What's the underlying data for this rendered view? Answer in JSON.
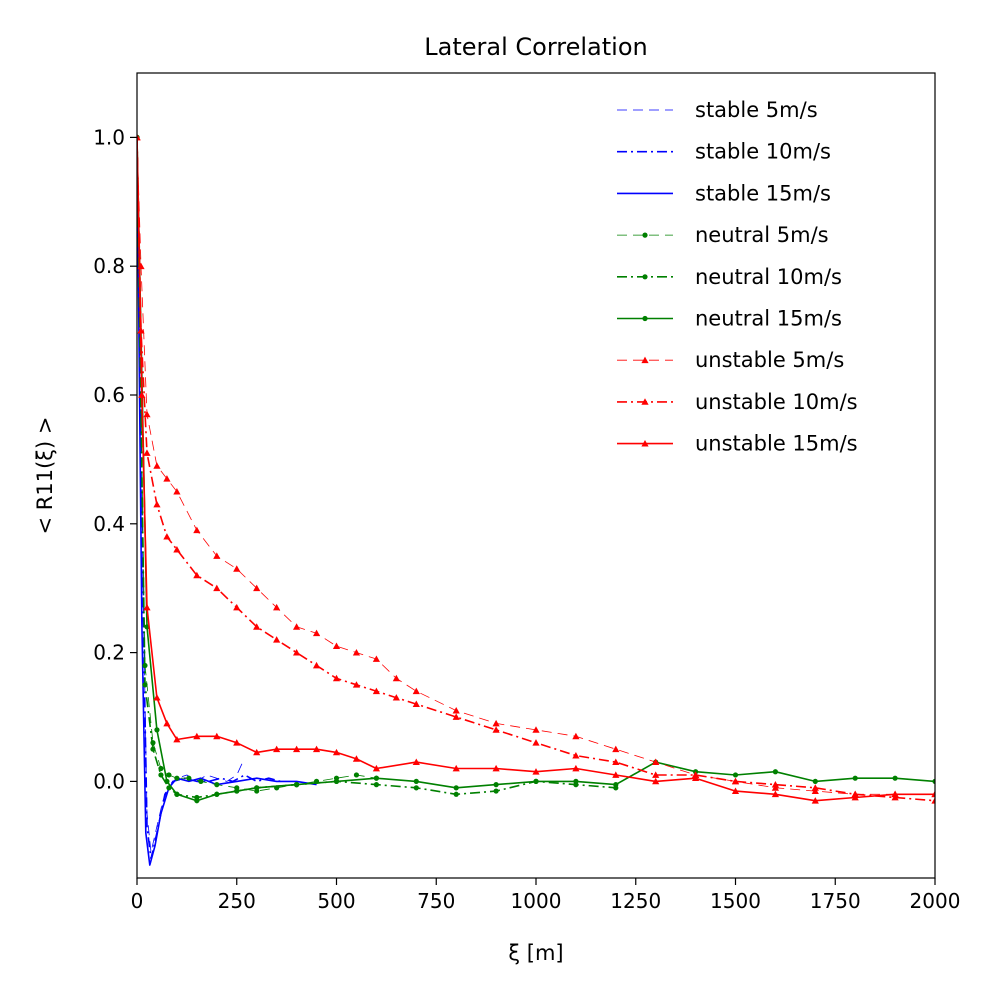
{
  "chart_data": {
    "type": "line",
    "title": "Lateral Correlation",
    "xlabel": "ξ [m]",
    "ylabel": "< R11(ξ) >",
    "xlim": [
      0,
      2000
    ],
    "ylim": [
      -0.15,
      1.1
    ],
    "xticks": [
      0,
      250,
      500,
      750,
      1000,
      1250,
      1500,
      1750,
      2000
    ],
    "xtick_labels": [
      "0",
      "250",
      "500",
      "750",
      "1000",
      "1250",
      "1500",
      "1750",
      "2000"
    ],
    "yticks": [
      0.0,
      0.2,
      0.4,
      0.6,
      0.8,
      1.0
    ],
    "ytick_labels": [
      "0.0",
      "0.2",
      "0.4",
      "0.6",
      "0.8",
      "1.0"
    ],
    "legend_position": "top-right",
    "grid": false,
    "series": [
      {
        "name": "stable 5m/s",
        "color": "#0000ff",
        "dash": "dashed",
        "width": 0.8,
        "marker": "none",
        "x": [
          0,
          15,
          25,
          35,
          50,
          65,
          80,
          100,
          125,
          150,
          175,
          200,
          225,
          250,
          265
        ],
        "y": [
          1.0,
          0.3,
          -0.05,
          -0.11,
          -0.07,
          -0.03,
          -0.01,
          0.005,
          0.01,
          0.0,
          0.01,
          0.005,
          0.0,
          0.01,
          0.03
        ]
      },
      {
        "name": "stable 10m/s",
        "color": "#0000ff",
        "dash": "dashdot",
        "width": 1.6,
        "marker": "none",
        "x": [
          0,
          15,
          25,
          35,
          50,
          70,
          90,
          120,
          150,
          180,
          210,
          240,
          270,
          300,
          330,
          360
        ],
        "y": [
          1.0,
          0.28,
          -0.07,
          -0.12,
          -0.08,
          -0.02,
          0.0,
          0.005,
          0.0,
          0.0,
          0.005,
          0.0,
          0.01,
          0.0,
          0.005,
          0.0
        ]
      },
      {
        "name": "stable 15m/s",
        "color": "#0000ff",
        "dash": "solid",
        "width": 1.6,
        "marker": "none",
        "x": [
          0,
          12,
          22,
          32,
          45,
          60,
          80,
          100,
          130,
          160,
          200,
          250,
          300,
          350,
          400,
          450
        ],
        "y": [
          1.0,
          0.25,
          -0.08,
          -0.13,
          -0.1,
          -0.05,
          -0.01,
          0.005,
          0.0,
          0.005,
          -0.005,
          0.0,
          0.005,
          0.0,
          0.0,
          -0.005
        ]
      },
      {
        "name": "neutral 5m/s",
        "color": "#008000",
        "dash": "dashed",
        "width": 0.8,
        "marker": "dot",
        "x": [
          0,
          20,
          40,
          60,
          80,
          100,
          130,
          160,
          200,
          250,
          300,
          350,
          400,
          450,
          500,
          550,
          600
        ],
        "y": [
          1.0,
          0.18,
          0.06,
          0.02,
          0.01,
          0.005,
          0.005,
          0.0,
          -0.005,
          -0.01,
          -0.015,
          -0.01,
          -0.005,
          0.0,
          0.005,
          0.01,
          0.005
        ]
      },
      {
        "name": "neutral 10m/s",
        "color": "#008000",
        "dash": "dashdot",
        "width": 1.6,
        "marker": "dot",
        "x": [
          0,
          20,
          40,
          60,
          80,
          100,
          150,
          200,
          250,
          300,
          400,
          500,
          600,
          700,
          800,
          900,
          1000,
          1100,
          1200
        ],
        "y": [
          1.0,
          0.15,
          0.05,
          0.01,
          -0.01,
          -0.02,
          -0.025,
          -0.02,
          -0.015,
          -0.01,
          -0.005,
          0.0,
          -0.005,
          -0.01,
          -0.02,
          -0.015,
          0.0,
          -0.005,
          -0.01
        ]
      },
      {
        "name": "neutral 15m/s",
        "color": "#008000",
        "dash": "solid",
        "width": 1.6,
        "marker": "dot",
        "x": [
          0,
          25,
          50,
          75,
          100,
          150,
          200,
          250,
          300,
          400,
          500,
          600,
          700,
          800,
          900,
          1000,
          1100,
          1200,
          1300,
          1400,
          1500,
          1600,
          1700,
          1800,
          1900,
          2000
        ],
        "y": [
          1.0,
          0.24,
          0.08,
          0.0,
          -0.02,
          -0.03,
          -0.02,
          -0.015,
          -0.01,
          -0.005,
          0.0,
          0.005,
          0.0,
          -0.01,
          -0.005,
          0.0,
          0.0,
          -0.005,
          0.03,
          0.015,
          0.01,
          0.015,
          0.0,
          0.005,
          0.005,
          0.0
        ]
      },
      {
        "name": "unstable 5m/s",
        "color": "#ff0000",
        "dash": "dashed",
        "width": 0.8,
        "marker": "triangle",
        "x": [
          0,
          10,
          25,
          50,
          75,
          100,
          150,
          200,
          250,
          300,
          350,
          400,
          450,
          500,
          550,
          600,
          650,
          700,
          800,
          900,
          1000,
          1100,
          1200,
          1300,
          1400,
          1500,
          1600,
          1700,
          1800,
          1900,
          2000
        ],
        "y": [
          1.0,
          0.8,
          0.57,
          0.49,
          0.47,
          0.45,
          0.39,
          0.35,
          0.33,
          0.3,
          0.27,
          0.24,
          0.23,
          0.21,
          0.2,
          0.19,
          0.16,
          0.14,
          0.11,
          0.09,
          0.08,
          0.07,
          0.05,
          0.03,
          0.01,
          0.0,
          -0.01,
          -0.015,
          -0.02,
          -0.02,
          -0.02
        ]
      },
      {
        "name": "unstable 10m/s",
        "color": "#ff0000",
        "dash": "dashdot",
        "width": 1.6,
        "marker": "triangle",
        "x": [
          0,
          10,
          25,
          50,
          75,
          100,
          150,
          200,
          250,
          300,
          350,
          400,
          450,
          500,
          550,
          600,
          650,
          700,
          800,
          900,
          1000,
          1100,
          1200,
          1300,
          1400,
          1500,
          1600,
          1700,
          1800,
          1900,
          2000
        ],
        "y": [
          1.0,
          0.7,
          0.51,
          0.43,
          0.38,
          0.36,
          0.32,
          0.3,
          0.27,
          0.24,
          0.22,
          0.2,
          0.18,
          0.16,
          0.15,
          0.14,
          0.13,
          0.12,
          0.1,
          0.08,
          0.06,
          0.04,
          0.03,
          0.01,
          0.01,
          0.0,
          -0.005,
          -0.01,
          -0.02,
          -0.025,
          -0.03
        ]
      },
      {
        "name": "unstable 15m/s",
        "color": "#ff0000",
        "dash": "solid",
        "width": 1.6,
        "marker": "triangle",
        "x": [
          0,
          12,
          25,
          50,
          75,
          100,
          150,
          200,
          250,
          300,
          350,
          400,
          450,
          500,
          550,
          600,
          700,
          800,
          900,
          1000,
          1100,
          1200,
          1300,
          1400,
          1500,
          1600,
          1700,
          1800,
          1900,
          2000
        ],
        "y": [
          1.0,
          0.6,
          0.27,
          0.13,
          0.09,
          0.065,
          0.07,
          0.07,
          0.06,
          0.045,
          0.05,
          0.05,
          0.05,
          0.045,
          0.035,
          0.02,
          0.03,
          0.02,
          0.02,
          0.015,
          0.02,
          0.01,
          0.0,
          0.005,
          -0.015,
          -0.02,
          -0.03,
          -0.025,
          -0.02,
          -0.02
        ]
      }
    ]
  }
}
